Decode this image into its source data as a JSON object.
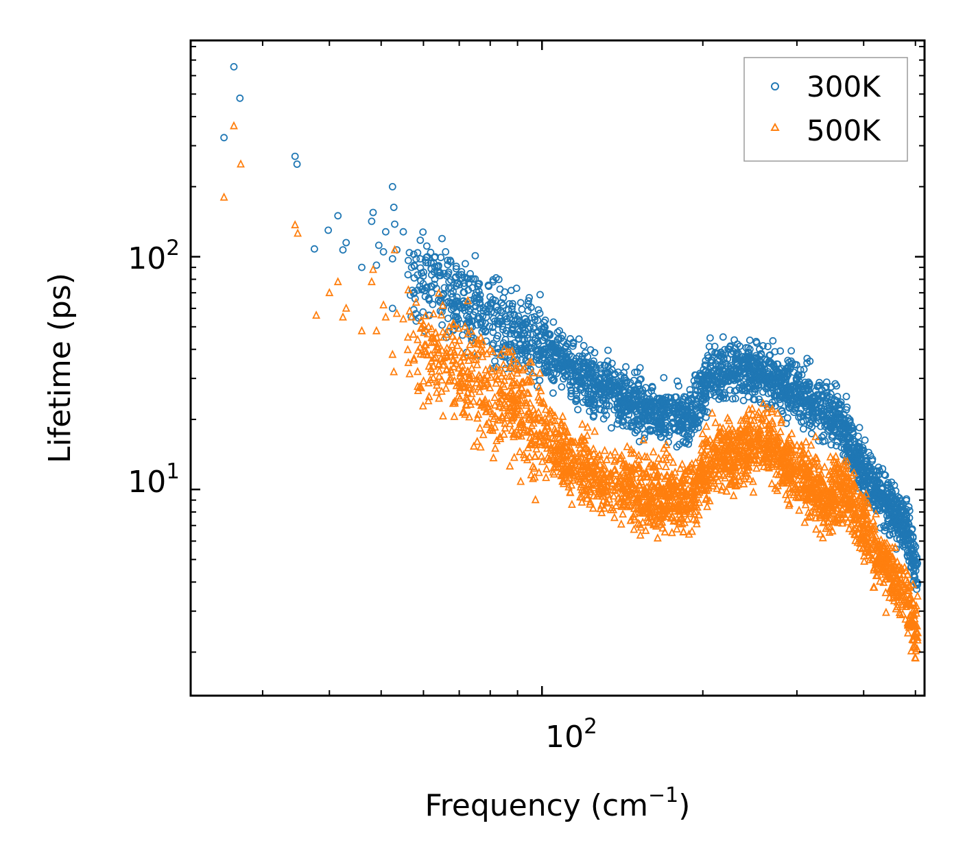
{
  "chart_data": {
    "type": "scatter",
    "title": "",
    "xlabel": "Frequency (cm",
    "xlabel_sup": "−1",
    "xlabel_close": ")",
    "ylabel": "Lifetime (ps)",
    "x_scale": "log",
    "y_scale": "log",
    "xlim": [
      22,
      520
    ],
    "ylim": [
      1.3,
      850
    ],
    "x_tick_labels": [
      {
        "base": "10",
        "exp": "2",
        "value": 100
      }
    ],
    "y_tick_labels": [
      {
        "base": "10",
        "exp": "1",
        "value": 10
      },
      {
        "base": "10",
        "exp": "2",
        "value": 100
      }
    ],
    "legend_position": "top-right",
    "series": [
      {
        "name": "300K",
        "marker": "circle",
        "color": "#1f77b4",
        "trend": [
          [
            25,
            340
          ],
          [
            35,
            200
          ],
          [
            50,
            100
          ],
          [
            70,
            65
          ],
          [
            100,
            40
          ],
          [
            130,
            27
          ],
          [
            160,
            22
          ],
          [
            190,
            20
          ],
          [
            205,
            30
          ],
          [
            215,
            32
          ],
          [
            240,
            33
          ],
          [
            260,
            32
          ],
          [
            280,
            28
          ],
          [
            320,
            24
          ],
          [
            360,
            20
          ],
          [
            400,
            12
          ],
          [
            440,
            9
          ],
          [
            480,
            7
          ],
          [
            500,
            4.5
          ]
        ],
        "points": [
          [
            26.5,
            655
          ],
          [
            27.2,
            480
          ],
          [
            25.4,
            325
          ],
          [
            34.5,
            270
          ],
          [
            34.8,
            250
          ],
          [
            37.5,
            108
          ],
          [
            39.8,
            130
          ],
          [
            41.5,
            150
          ],
          [
            42.4,
            107
          ],
          [
            43.0,
            115
          ],
          [
            46.0,
            90
          ],
          [
            48.0,
            142
          ],
          [
            48.3,
            155
          ],
          [
            49.0,
            92
          ],
          [
            49.5,
            112
          ],
          [
            50.5,
            105
          ],
          [
            51.0,
            128
          ],
          [
            52.5,
            200
          ],
          [
            52.8,
            163
          ],
          [
            53.0,
            138
          ],
          [
            52.5,
            98
          ],
          [
            53.5,
            107
          ],
          [
            55.0,
            128
          ],
          [
            57.0,
            90
          ],
          [
            58.5,
            104
          ],
          [
            61.0,
            100
          ],
          [
            62.0,
            94
          ],
          [
            63.0,
            80
          ],
          [
            66.0,
            105
          ],
          [
            67.5,
            95
          ],
          [
            75.0,
            101
          ],
          [
            81.0,
            78
          ],
          [
            52.5,
            60
          ]
        ]
      },
      {
        "name": "500K",
        "marker": "triangle",
        "color": "#ff7f0e",
        "trend": [
          [
            25,
            180
          ],
          [
            35,
            100
          ],
          [
            50,
            55
          ],
          [
            70,
            32
          ],
          [
            90,
            22
          ],
          [
            110,
            14
          ],
          [
            130,
            11
          ],
          [
            160,
            9.5
          ],
          [
            190,
            9.5
          ],
          [
            205,
            13
          ],
          [
            215,
            14
          ],
          [
            240,
            15
          ],
          [
            260,
            16
          ],
          [
            280,
            14
          ],
          [
            310,
            11
          ],
          [
            340,
            9
          ],
          [
            370,
            10
          ],
          [
            400,
            7
          ],
          [
            440,
            4.5
          ],
          [
            480,
            3.5
          ],
          [
            500,
            2.4
          ]
        ],
        "points": [
          [
            26.5,
            365
          ],
          [
            27.3,
            250
          ],
          [
            25.4,
            180
          ],
          [
            34.5,
            137
          ],
          [
            34.9,
            126
          ],
          [
            37.8,
            56
          ],
          [
            40.0,
            70
          ],
          [
            41.5,
            78
          ],
          [
            42.4,
            55
          ],
          [
            43.0,
            60
          ],
          [
            46.0,
            48
          ],
          [
            48.0,
            78
          ],
          [
            48.3,
            88
          ],
          [
            49.0,
            48
          ],
          [
            50.5,
            62
          ],
          [
            51.0,
            55
          ],
          [
            52.5,
            38
          ],
          [
            52.8,
            32
          ],
          [
            53.0,
            107
          ],
          [
            53.5,
            57
          ],
          [
            55.0,
            54
          ],
          [
            57.0,
            55
          ],
          [
            58.5,
            44
          ],
          [
            60.0,
            38
          ],
          [
            62.0,
            33
          ]
        ]
      }
    ]
  }
}
